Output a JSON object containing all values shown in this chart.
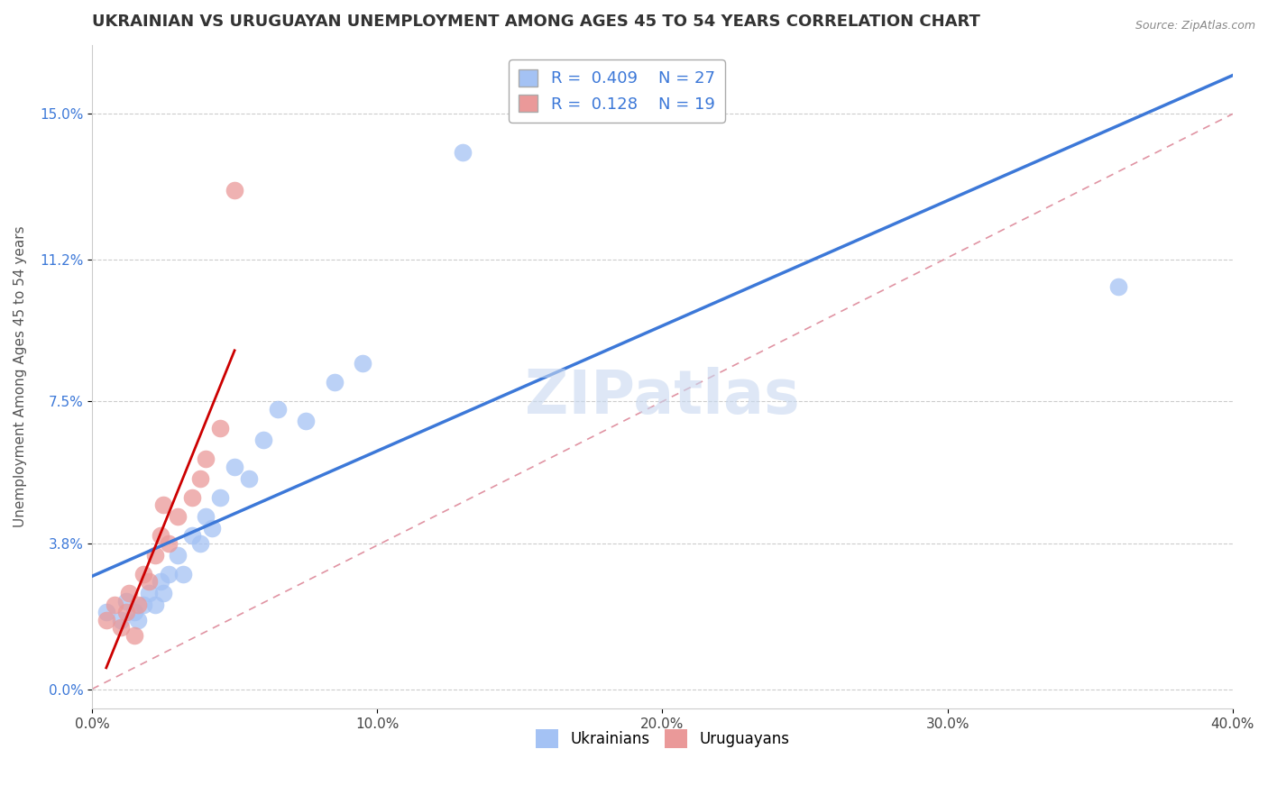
{
  "title": "UKRAINIAN VS URUGUAYAN UNEMPLOYMENT AMONG AGES 45 TO 54 YEARS CORRELATION CHART",
  "source": "Source: ZipAtlas.com",
  "ylabel": "Unemployment Among Ages 45 to 54 years",
  "xlabel": "",
  "xlim": [
    0.0,
    0.4
  ],
  "ylim": [
    -0.005,
    0.168
  ],
  "yticks": [
    0.0,
    0.038,
    0.075,
    0.112,
    0.15
  ],
  "ytick_labels": [
    "0.0%",
    "3.8%",
    "7.5%",
    "11.2%",
    "15.0%"
  ],
  "xticks": [
    0.0,
    0.1,
    0.2,
    0.3,
    0.4
  ],
  "xtick_labels": [
    "0.0%",
    "10.0%",
    "20.0%",
    "30.0%",
    "40.0%"
  ],
  "ukrainians_x": [
    0.005,
    0.01,
    0.012,
    0.015,
    0.016,
    0.018,
    0.02,
    0.022,
    0.024,
    0.025,
    0.027,
    0.03,
    0.032,
    0.035,
    0.038,
    0.04,
    0.042,
    0.045,
    0.05,
    0.055,
    0.06,
    0.065,
    0.075,
    0.085,
    0.095,
    0.13,
    0.36
  ],
  "ukrainians_y": [
    0.02,
    0.018,
    0.023,
    0.02,
    0.018,
    0.022,
    0.025,
    0.022,
    0.028,
    0.025,
    0.03,
    0.035,
    0.03,
    0.04,
    0.038,
    0.045,
    0.042,
    0.05,
    0.058,
    0.055,
    0.065,
    0.073,
    0.07,
    0.08,
    0.085,
    0.14,
    0.105
  ],
  "uruguayans_x": [
    0.005,
    0.008,
    0.01,
    0.012,
    0.013,
    0.015,
    0.016,
    0.018,
    0.02,
    0.022,
    0.024,
    0.025,
    0.027,
    0.03,
    0.035,
    0.038,
    0.04,
    0.045,
    0.05
  ],
  "uruguayans_y": [
    0.018,
    0.022,
    0.016,
    0.02,
    0.025,
    0.014,
    0.022,
    0.03,
    0.028,
    0.035,
    0.04,
    0.048,
    0.038,
    0.045,
    0.05,
    0.055,
    0.06,
    0.068,
    0.13
  ],
  "R_ukrainians": 0.409,
  "N_ukrainians": 27,
  "R_uruguayans": 0.128,
  "N_uruguayans": 19,
  "color_ukrainian": "#a4c2f4",
  "color_uruguayan": "#ea9999",
  "color_ukrainian_line": "#3c78d8",
  "color_uruguayan_line": "#cc0000",
  "diag_color": "#dd99aa",
  "watermark": "ZIPatlas",
  "background_color": "#ffffff",
  "grid_color": "#cccccc"
}
